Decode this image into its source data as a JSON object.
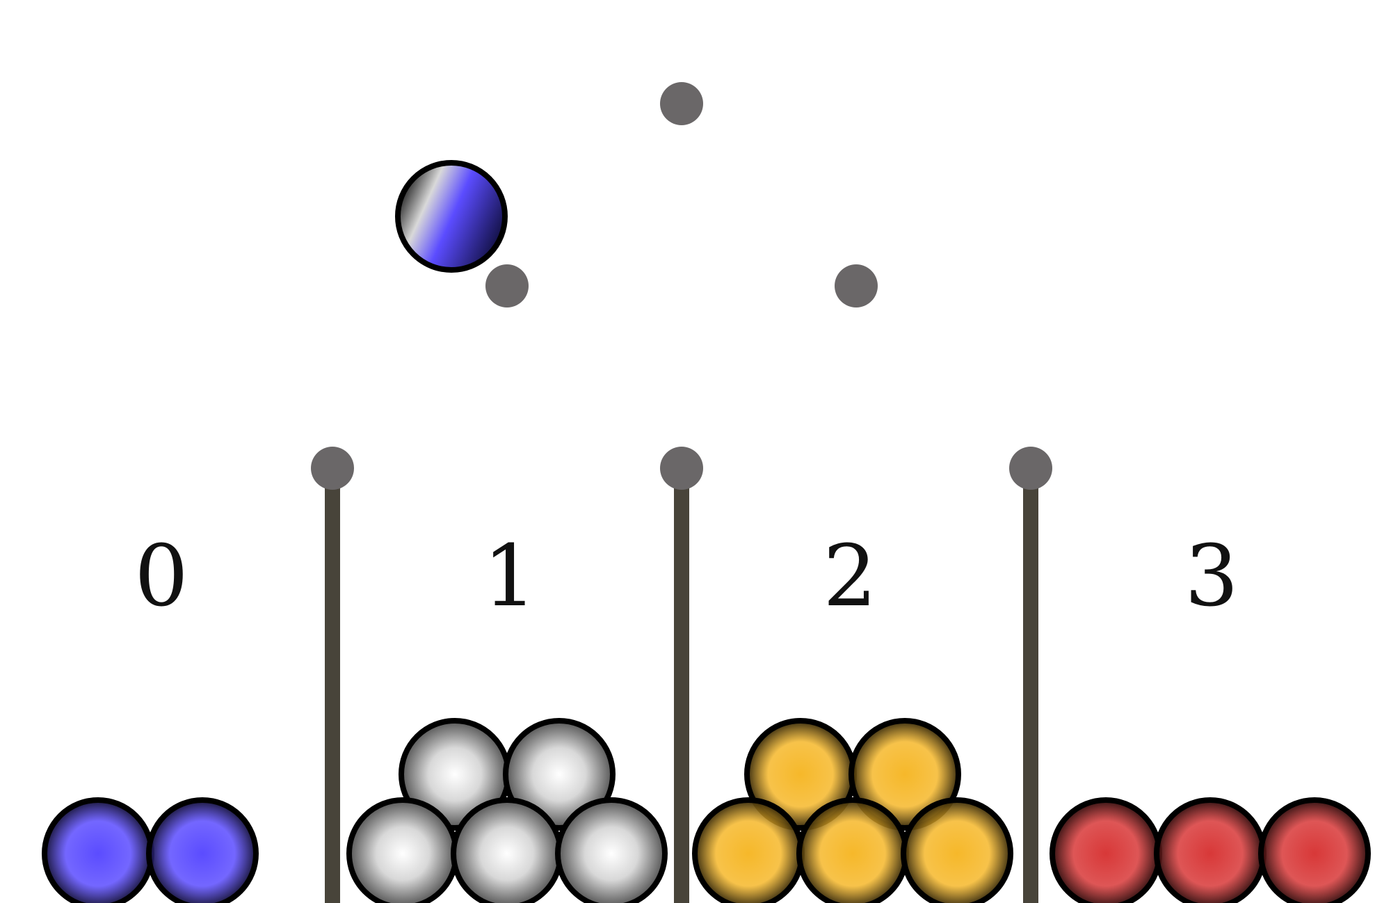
{
  "bins": [
    {
      "label": "0",
      "ball_count": 2,
      "ball_color": "#5b4cff"
    },
    {
      "label": "1",
      "ball_count": 5,
      "ball_color": "#ffffff"
    },
    {
      "label": "2",
      "ball_count": 5,
      "ball_color": "#f6b82a"
    },
    {
      "label": "3",
      "ball_count": 3,
      "ball_color": "#d83838"
    }
  ],
  "colors": {
    "peg": "#6a6768",
    "divider": "#48443a",
    "ball_outline": "#000000",
    "background": "#ffffff",
    "falling_ball_color": "#5b4cff"
  },
  "peg_rows": [
    1,
    2,
    3
  ],
  "falling_ball": {
    "row": 1,
    "side": "left"
  }
}
